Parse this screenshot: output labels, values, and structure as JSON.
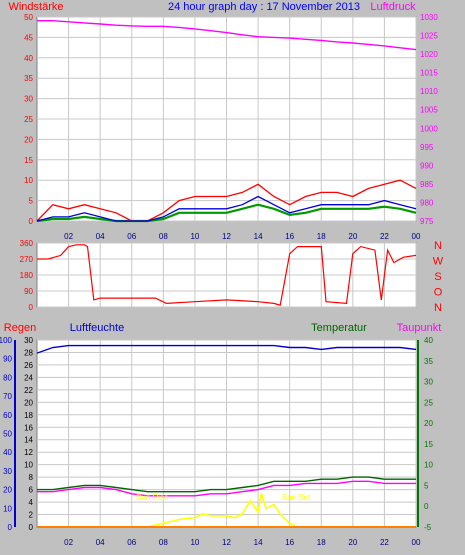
{
  "header": {
    "left_label": "Windstärke",
    "title": "24 hour graph day : 17 November 2013",
    "right_label": "Luftdruck"
  },
  "colors": {
    "background": "#c0c0c0",
    "plot_bg": "#ffffff",
    "grid": "#c8c8c8",
    "wind": "#ff0000",
    "gust_blue": "#0000dd",
    "wind_avg_green": "#009900",
    "pressure": "#ff00ff",
    "direction": "#ff0000",
    "rain": "#ff7f00",
    "humidity": "#0000cc",
    "temperature": "#006600",
    "dewpoint": "#ff00ff",
    "solar": "#ffff00",
    "left_axis_wind": "#ff0000",
    "left_axis_rain": "#0000cc",
    "right_axis_pressure": "#ff00ff",
    "right_axis_temp": "#007700"
  },
  "x_ticks": [
    "02",
    "04",
    "06",
    "08",
    "10",
    "12",
    "14",
    "16",
    "18",
    "20",
    "22",
    "00"
  ],
  "chart_data": [
    {
      "type": "line",
      "name": "wind_pressure",
      "title": "24 hour graph day : 17 November 2013",
      "ylabel_left": "Windstärke",
      "ylabel_right": "Luftdruck",
      "ylim_left": [
        0,
        50
      ],
      "yticks_left": [
        0,
        5,
        10,
        15,
        20,
        25,
        30,
        35,
        40,
        45,
        50
      ],
      "ylim_right": [
        975,
        1030
      ],
      "yticks_right": [
        975,
        980,
        985,
        990,
        995,
        1000,
        1005,
        1010,
        1015,
        1020,
        1025,
        1030
      ],
      "x_hours": [
        0,
        1,
        2,
        3,
        4,
        5,
        6,
        7,
        8,
        9,
        10,
        11,
        12,
        13,
        14,
        15,
        16,
        17,
        18,
        19,
        20,
        21,
        22,
        23,
        24
      ],
      "series": [
        {
          "axis": "right",
          "values": [
            1029,
            1029,
            1028.7,
            1028.4,
            1028.1,
            1027.8,
            1027.6,
            1027.5,
            1027.5,
            1027.2,
            1026.8,
            1026.3,
            1025.8,
            1025.2,
            1024.7,
            1024.5,
            1024.3,
            1024.0,
            1023.7,
            1023.3,
            1023.0,
            1022.6,
            1022.2,
            1021.7,
            1021.2
          ]
        },
        {
          "axis": "left",
          "values": [
            0,
            4,
            3,
            4,
            3,
            2,
            0,
            0,
            2,
            5,
            6,
            6,
            6,
            7,
            9,
            6,
            4,
            6,
            7,
            7,
            6,
            8,
            9,
            10,
            8
          ]
        },
        {
          "axis": "left",
          "values": [
            0,
            1,
            1,
            2,
            1,
            0,
            0,
            0,
            1,
            3,
            3,
            3,
            3,
            4,
            6,
            4,
            2,
            3,
            4,
            4,
            4,
            4,
            5,
            4,
            3
          ]
        },
        {
          "axis": "left",
          "values": [
            0,
            0.5,
            0.5,
            1,
            0.5,
            0,
            0,
            0,
            0.5,
            2,
            2,
            2,
            2,
            3,
            4,
            3,
            1.5,
            2,
            3,
            3,
            3,
            3,
            3.5,
            3,
            2
          ]
        }
      ]
    },
    {
      "type": "line",
      "name": "wind_direction",
      "ylim": [
        0,
        360
      ],
      "yticks": [
        0,
        90,
        180,
        270,
        360
      ],
      "compass_labels": [
        "N",
        "W",
        "S",
        "O",
        "N"
      ],
      "x_hours": [
        0,
        0.7,
        1.5,
        2.0,
        2.5,
        3.0,
        3.2,
        3.6,
        4.0,
        5.5,
        7.5,
        8.2,
        10,
        12,
        14,
        15.0,
        15.4,
        16.0,
        16.5,
        18.0,
        18.3,
        19.6,
        20.0,
        20.5,
        21.4,
        21.8,
        22.2,
        22.6,
        23.2,
        24
      ],
      "values": [
        270,
        270,
        290,
        340,
        350,
        350,
        340,
        40,
        50,
        50,
        50,
        20,
        30,
        40,
        30,
        20,
        10,
        300,
        340,
        340,
        30,
        20,
        300,
        340,
        320,
        40,
        320,
        250,
        280,
        290
      ]
    },
    {
      "type": "line",
      "name": "rain_humidity_temp",
      "ylabel_left": "Regen",
      "ylabel_humidity": "Luftfeuchte",
      "ylabel_temp": "Temperatur",
      "ylabel_dew": "Taupunkt",
      "ylim_rain": [
        0,
        30
      ],
      "yticks_rain": [
        0,
        2,
        4,
        6,
        8,
        10,
        12,
        14,
        16,
        18,
        20,
        22,
        24,
        26,
        28,
        30
      ],
      "ylim_humidity": [
        0,
        100
      ],
      "yticks_humidity": [
        0,
        10,
        20,
        30,
        40,
        50,
        60,
        70,
        80,
        90,
        100
      ],
      "ylim_temp": [
        -5,
        40
      ],
      "yticks_temp": [
        -5,
        0,
        5,
        10,
        15,
        20,
        25,
        30,
        35,
        40
      ],
      "annotations": [
        "Sun Rise",
        "Sun Set"
      ],
      "sunrise_hour": 7.3,
      "sunset_hour": 16.4,
      "x_hours": [
        0,
        1,
        2,
        3,
        4,
        5,
        6,
        7,
        8,
        9,
        10,
        11,
        12,
        13,
        14,
        15,
        16,
        17,
        18,
        19,
        20,
        21,
        22,
        23,
        24
      ],
      "series": [
        {
          "axis": "humidity",
          "values": [
            93,
            96,
            97,
            97,
            97,
            97,
            97,
            97,
            97,
            97,
            97,
            97,
            97,
            97,
            97,
            97,
            96,
            96,
            95,
            96,
            96,
            96,
            96,
            96,
            95
          ]
        },
        {
          "axis": "temp",
          "values": [
            4.0,
            4.0,
            4.5,
            5.0,
            5.0,
            4.5,
            4.0,
            3.5,
            3.5,
            3.5,
            3.5,
            4.0,
            4.0,
            4.5,
            5.0,
            6.0,
            6.0,
            6.0,
            6.5,
            6.5,
            7.0,
            7.0,
            6.5,
            6.5,
            6.5
          ]
        },
        {
          "axis": "temp",
          "values": [
            3.5,
            3.5,
            4.0,
            4.5,
            4.5,
            4.0,
            3.0,
            2.5,
            2.5,
            2.5,
            2.5,
            3.0,
            3.0,
            3.5,
            4.0,
            5.0,
            5.0,
            5.5,
            5.5,
            5.5,
            6.0,
            6.0,
            5.5,
            5.5,
            5.5
          ]
        },
        {
          "axis": "rain",
          "values": [
            0,
            0,
            0,
            0,
            0,
            0,
            0,
            0,
            0,
            0,
            0,
            0,
            0,
            0,
            0,
            0,
            0,
            0,
            0,
            0,
            0,
            0,
            0,
            0,
            0
          ]
        },
        {
          "axis": "humidity",
          "x_hours": [
            7.0,
            7.5,
            8.0,
            9.0,
            10.0,
            10.5,
            11.0,
            12.0,
            12.5,
            13.0,
            13.5,
            14.0,
            14.2,
            14.5,
            15.0,
            15.5,
            16.0,
            16.5
          ],
          "values": [
            0,
            1,
            2,
            4,
            5,
            7,
            6,
            6,
            5,
            7,
            14,
            8,
            18,
            10,
            12,
            6,
            2,
            0
          ]
        }
      ]
    }
  ]
}
